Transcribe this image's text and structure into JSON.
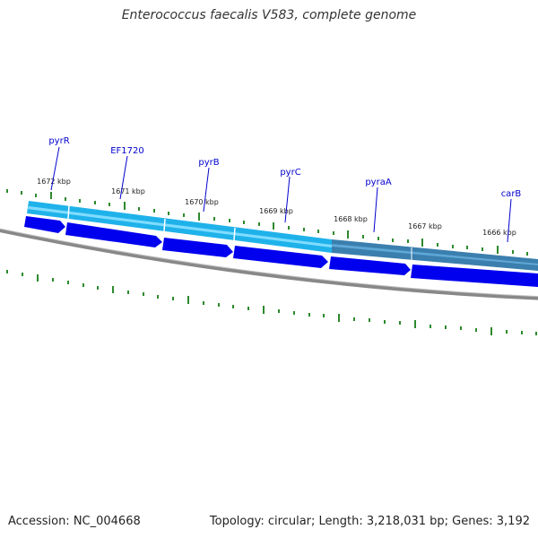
{
  "title": "Enterococcus faecalis V583, complete genome",
  "accession": "Accession: NC_004668",
  "summary": "Topology: circular; Length: 3,218,031 bp; Genes: 3,192",
  "ruler": [
    "1672 kbp",
    "1671 kbp",
    "1670 kbp",
    "1669 kbp",
    "1668 kbp",
    "1667 kbp",
    "1666 kbp"
  ],
  "genes": [
    "pyrR",
    "EF1720",
    "pyrB",
    "pyrC",
    "pyraA",
    "carB"
  ],
  "colors": {
    "gene_arrow": "#0000ee",
    "gene_label": "#0000cc",
    "cds_track": "#29bfef",
    "cds_track_dark": "#3d80b0",
    "tick": "#2d8a2d",
    "backbone": "#808080"
  }
}
